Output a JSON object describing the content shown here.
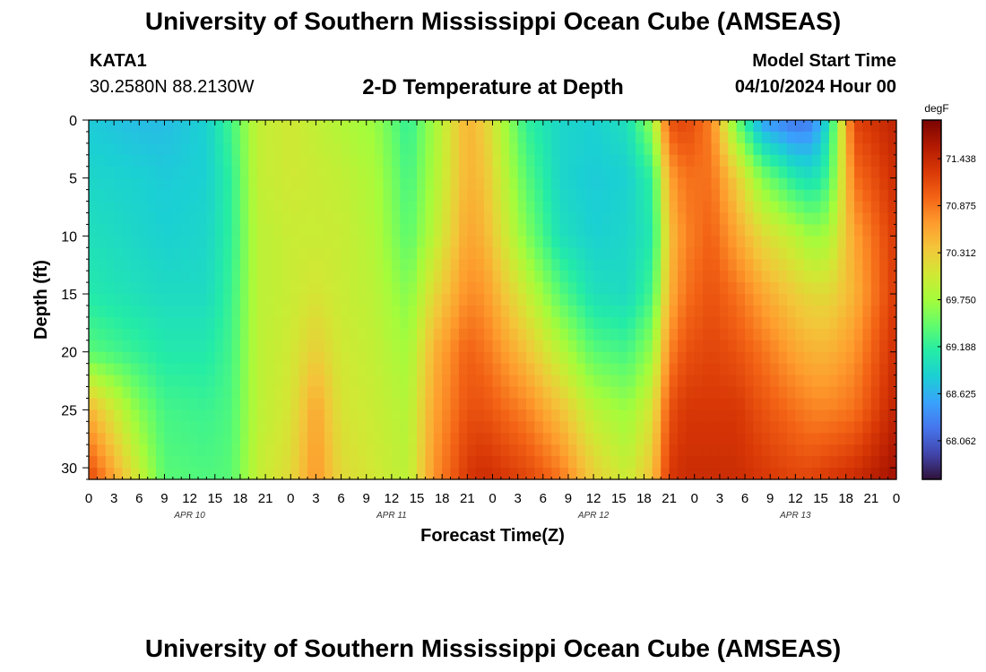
{
  "header": {
    "title": "University of Southern Mississippi Ocean Cube (AMSEAS)",
    "station_id": "KATA1",
    "station_coords": "30.2580N  88.2130W",
    "plot_title": "2-D Temperature at Depth",
    "model_start_label": "Model Start Time",
    "model_start_value": "04/10/2024 Hour 00"
  },
  "footer": {
    "title": "University of Southern Mississippi Ocean Cube (AMSEAS)"
  },
  "chart_data": {
    "type": "heatmap",
    "title": "2-D Temperature at Depth",
    "xlabel": "Forecast Time(Z)",
    "ylabel": "Depth (ft)",
    "x_ticks": [
      "0",
      "3",
      "6",
      "9",
      "12",
      "15",
      "18",
      "21",
      "0",
      "3",
      "6",
      "9",
      "12",
      "15",
      "18",
      "21",
      "0",
      "3",
      "6",
      "9",
      "12",
      "15",
      "18",
      "21",
      "0",
      "3",
      "6",
      "9",
      "12",
      "15",
      "18",
      "21",
      "0"
    ],
    "x_hours": [
      0,
      3,
      6,
      9,
      12,
      15,
      18,
      21,
      24,
      27,
      30,
      33,
      36,
      39,
      42,
      45,
      48,
      51,
      54,
      57,
      60,
      63,
      66,
      69,
      72,
      75,
      78,
      81,
      84,
      87,
      90,
      93,
      96
    ],
    "xlim": [
      0,
      96
    ],
    "date_labels": [
      {
        "label": "APR 10",
        "hour": 12
      },
      {
        "label": "APR 11",
        "hour": 36
      },
      {
        "label": "APR 12",
        "hour": 60
      },
      {
        "label": "APR 13",
        "hour": 84
      }
    ],
    "y_ticks": [
      0,
      5,
      10,
      15,
      20,
      25,
      30
    ],
    "ylim": [
      0,
      31
    ],
    "y_inverted": true,
    "colorbar": {
      "unit": "degF",
      "ticks": [
        "71.438",
        "70.875",
        "70.312",
        "69.750",
        "69.188",
        "68.625",
        "68.062"
      ],
      "range": [
        67.6,
        71.9
      ],
      "colors": [
        "#30123b",
        "#4145ab",
        "#4675ed",
        "#39a2fc",
        "#1bcfd4",
        "#24eca6",
        "#61fc6c",
        "#a4fc3b",
        "#d1e834",
        "#f3c63a",
        "#fe9b2d",
        "#f36315",
        "#d93806",
        "#b11901",
        "#7a0402"
      ]
    },
    "hours": [
      0,
      6,
      9,
      14,
      17,
      20,
      24,
      27,
      30,
      34,
      38,
      41,
      45,
      47,
      52,
      56,
      60,
      64,
      67,
      69,
      71,
      74,
      77,
      80,
      84,
      86,
      88,
      91,
      96
    ],
    "depths": [
      0,
      5,
      10,
      15,
      20,
      25,
      31
    ],
    "values": [
      [
        68.8,
        68.7,
        68.7,
        68.85,
        69.3,
        69.95,
        70.05,
        69.95,
        69.85,
        69.7,
        69.2,
        69.75,
        70.5,
        70.3,
        69.2,
        68.9,
        68.85,
        69.0,
        69.7,
        71.1,
        71.2,
        70.8,
        69.5,
        68.5,
        68.2,
        68.3,
        69.0,
        71.2,
        71.5
      ],
      [
        68.9,
        68.85,
        68.8,
        68.85,
        69.2,
        69.95,
        70.05,
        70.0,
        69.95,
        69.8,
        69.3,
        69.8,
        70.5,
        70.4,
        69.4,
        68.9,
        68.8,
        68.85,
        69.2,
        70.6,
        70.9,
        70.9,
        70.3,
        69.6,
        69.1,
        69.0,
        69.3,
        70.9,
        71.4
      ],
      [
        69.0,
        68.9,
        68.85,
        68.9,
        69.2,
        69.9,
        70.0,
        70.0,
        70.0,
        69.85,
        69.4,
        69.9,
        70.6,
        70.5,
        69.6,
        69.0,
        68.85,
        68.9,
        69.1,
        70.4,
        70.8,
        71.0,
        70.6,
        70.2,
        69.9,
        69.7,
        69.8,
        70.6,
        71.3
      ],
      [
        69.1,
        69.0,
        68.95,
        68.95,
        69.25,
        69.9,
        70.0,
        70.1,
        70.0,
        69.9,
        69.6,
        70.2,
        70.75,
        70.7,
        70.0,
        69.4,
        69.0,
        68.95,
        69.3,
        70.5,
        70.9,
        71.1,
        70.9,
        70.6,
        70.3,
        70.2,
        70.2,
        70.5,
        71.3
      ],
      [
        69.4,
        69.2,
        69.1,
        69.1,
        69.3,
        69.9,
        70.05,
        70.3,
        70.05,
        69.95,
        69.75,
        70.5,
        71.0,
        70.9,
        70.4,
        69.9,
        69.4,
        69.3,
        69.7,
        70.8,
        71.1,
        71.2,
        71.1,
        70.9,
        70.6,
        70.5,
        70.5,
        70.7,
        71.4
      ],
      [
        70.5,
        69.6,
        69.3,
        69.25,
        69.35,
        69.9,
        70.1,
        70.6,
        70.1,
        70.0,
        69.85,
        70.6,
        71.1,
        71.1,
        70.8,
        70.4,
        69.9,
        69.7,
        70.1,
        71.1,
        71.3,
        71.3,
        71.3,
        71.1,
        70.9,
        70.8,
        70.8,
        70.9,
        71.5
      ],
      [
        71.2,
        70.0,
        69.4,
        69.35,
        69.4,
        69.95,
        70.2,
        70.7,
        70.2,
        70.05,
        69.9,
        70.7,
        71.3,
        71.4,
        71.2,
        70.9,
        70.3,
        70.0,
        70.4,
        71.3,
        71.4,
        71.4,
        71.4,
        71.3,
        71.2,
        71.2,
        71.3,
        71.4,
        71.7
      ]
    ]
  }
}
